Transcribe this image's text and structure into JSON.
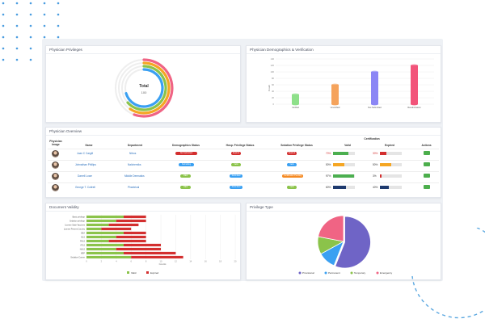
{
  "colors": {
    "valid": "#8bc34a",
    "expired": "#d32f2f",
    "provisional": "#6f64c6",
    "permanent": "#3aa0f2",
    "temporary": "#8bc34a",
    "emergency": "#f06484"
  },
  "privileges": {
    "title": "Physician Privileges",
    "center_label": "Total",
    "center_value": "100"
  },
  "demographics": {
    "title": "Physician Demographics & Verification",
    "chart_data": {
      "type": "bar",
      "categories": [
        "Verified",
        "Unverified",
        "Not Submitted",
        "Resubmission"
      ],
      "values": [
        30,
        60,
        100,
        120
      ],
      "ylim": [
        0,
        140
      ],
      "yticks": [
        "0",
        "20",
        "40",
        "60",
        "80",
        "100",
        "120",
        "140"
      ],
      "ylabel": "Count",
      "colors": [
        "#8ee08a",
        "#f5a35c",
        "#8b86f5",
        "#f2547a"
      ]
    }
  },
  "overview": {
    "title": "Physician Overview",
    "certification_header": "Certification",
    "headers": {
      "image": "Physician Image",
      "name": "Name",
      "department": "Department",
      "demo": "Demographics Status",
      "hosp": "Hosp. Privilege Status",
      "sed": "Sedation Privilege Status",
      "valid": "Valid",
      "expired": "Expired",
      "actions": "Actions"
    },
    "rows": [
      {
        "name": "Juan C Cargill",
        "dept": "Nitros",
        "demo": {
          "label": "Not Submitted",
          "color": "#d32f2f"
        },
        "hosp": {
          "label": "Expired",
          "color": "#d32f2f"
        },
        "sed": {
          "label": "Expired",
          "color": "#d32f2f"
        },
        "valid_pct": "70%",
        "valid_fill": 0.7,
        "valid_color": "#4caf50",
        "exp_pct": "30%",
        "exp_fill": 0.3,
        "exp_color": "#d32f2f"
      },
      {
        "name": "Johnathan Phillips",
        "dept": "Nalchemiks",
        "demo": {
          "label": "Submitting",
          "color": "#3aa0f2"
        },
        "hosp": {
          "label": "Valid",
          "color": "#8bc34a"
        },
        "sed": {
          "label": "Valid",
          "color": "#3aa0f2"
        },
        "valid_pct": "50%",
        "valid_fill": 0.5,
        "valid_color": "#f5a623",
        "exp_pct": "50%",
        "exp_fill": 0.5,
        "exp_color": "#f5a623"
      },
      {
        "name": "Darrell Lowe",
        "dept": "Middle Dermatics",
        "demo": {
          "label": "Valid",
          "color": "#8bc34a"
        },
        "hosp": {
          "label": "Submitted",
          "color": "#3aa0f2"
        },
        "sed": {
          "label": "Certification Pending",
          "color": "#f58a23"
        },
        "valid_pct": "97%",
        "valid_fill": 0.97,
        "valid_color": "#4caf50",
        "exp_pct": "3%",
        "exp_fill": 0.03,
        "exp_color": "#d32f2f"
      },
      {
        "name": "George T. Cottrell",
        "dept": "Phantrical",
        "demo": {
          "label": "Valid",
          "color": "#8bc34a"
        },
        "hosp": {
          "label": "Submitted",
          "color": "#3aa0f2"
        },
        "sed": {
          "label": "Valid",
          "color": "#8bc34a"
        },
        "valid_pct": "60%",
        "valid_fill": 0.6,
        "valid_color": "#1e3a6e",
        "exp_pct": "40%",
        "exp_fill": 0.4,
        "exp_color": "#1e3a6e"
      }
    ]
  },
  "validity": {
    "title": "Document Validity",
    "legend": {
      "valid": "Valid",
      "expired": "Expired"
    },
    "xlabel": "Counts",
    "chart_data": {
      "type": "bar",
      "orientation": "horizontal",
      "stacked": true,
      "categories": [
        "Basic privilege",
        "Sedation privilege",
        "License State Vaccines",
        "License Present Country",
        "DEA",
        "BLS",
        "PALS",
        "ATLS",
        "NALS",
        "NRP",
        "Sedation Course"
      ],
      "series": [
        {
          "name": "Valid",
          "values": [
            5,
            4,
            3,
            2,
            5,
            4,
            3,
            5,
            4,
            5,
            6
          ]
        },
        {
          "name": "Expired",
          "values": [
            3,
            4,
            4,
            4,
            3,
            4,
            5,
            5,
            6,
            7,
            7
          ]
        }
      ],
      "xlim": [
        0,
        20
      ],
      "xticks": [
        "0",
        "2",
        "4",
        "6",
        "8",
        "10",
        "12",
        "14",
        "16",
        "18",
        "20"
      ]
    }
  },
  "privtype": {
    "title": "Privilege Type",
    "chart_data": {
      "type": "pie",
      "labels": [
        "Provisional",
        "Permanent",
        "Temporary",
        "Emergency"
      ],
      "values": [
        56,
        11,
        11,
        22
      ]
    }
  }
}
